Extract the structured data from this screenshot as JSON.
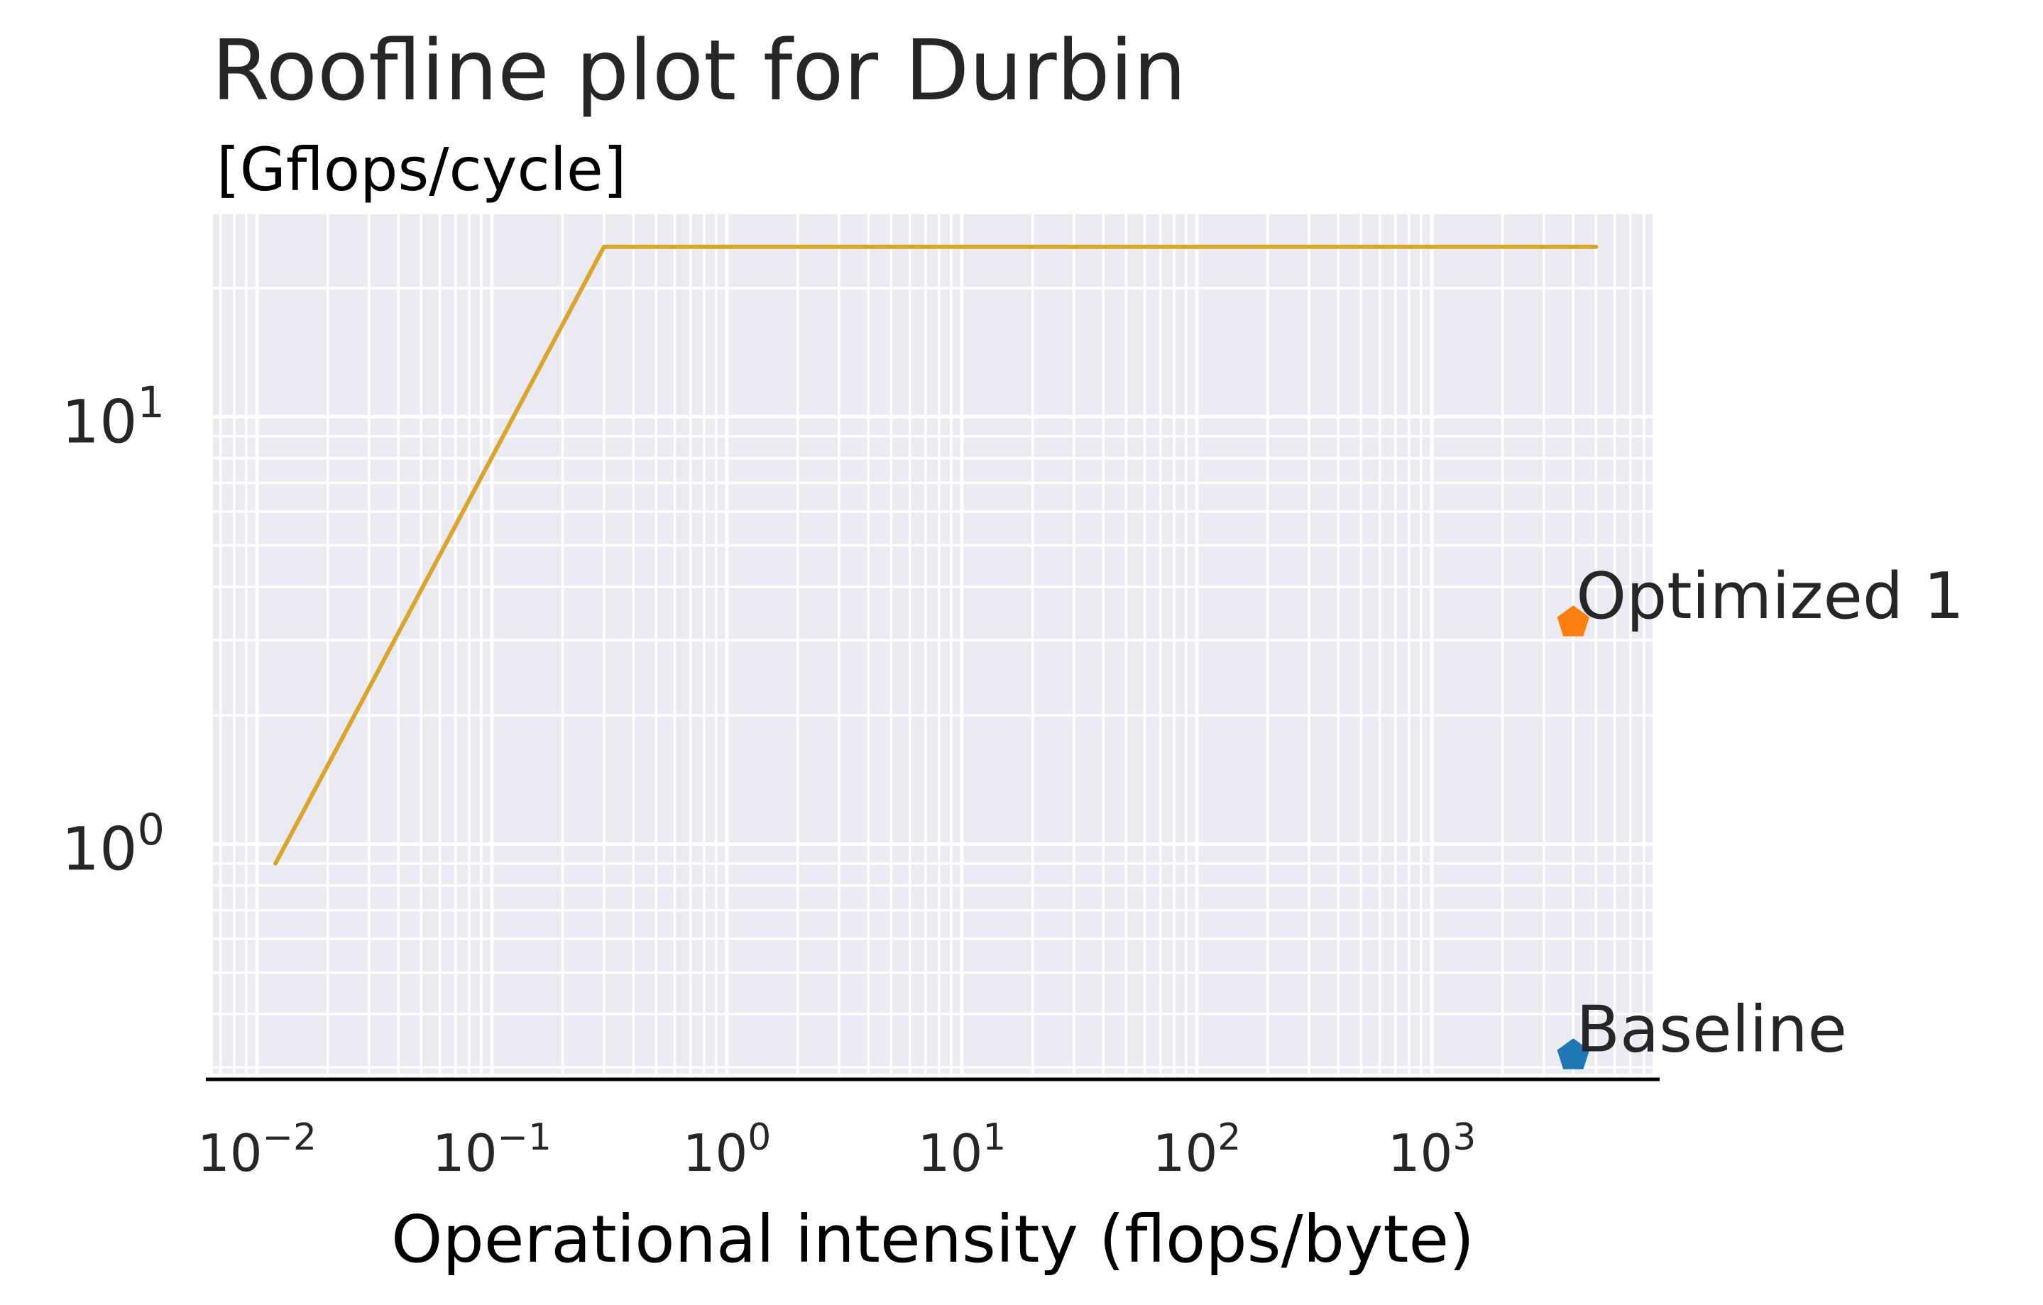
{
  "chart_data": {
    "type": "line",
    "title": "Roofline plot for Durbin",
    "ylabel": "[Gflops/cycle]",
    "xlabel": "Operational intensity (flops/byte)",
    "x_scale": "log",
    "y_scale": "log",
    "xlim": [
      0.0065,
      8700
    ],
    "ylim": [
      0.29,
      30
    ],
    "grid": true,
    "x_ticks": [
      {
        "value": 0.01,
        "base": "10",
        "exp": "−2"
      },
      {
        "value": 0.1,
        "base": "10",
        "exp": "−1"
      },
      {
        "value": 1,
        "base": "10",
        "exp": "0"
      },
      {
        "value": 10,
        "base": "10",
        "exp": "1"
      },
      {
        "value": 100,
        "base": "10",
        "exp": "2"
      },
      {
        "value": 1000,
        "base": "10",
        "exp": "3"
      }
    ],
    "y_ticks": [
      {
        "value": 1,
        "base": "10",
        "exp": "0"
      },
      {
        "value": 10,
        "base": "10",
        "exp": "1"
      }
    ],
    "roofline": {
      "color": "#DAA52A",
      "x": [
        0.012,
        0.3,
        5000
      ],
      "y": [
        0.9,
        25,
        25
      ]
    },
    "points": [
      {
        "label": "Baseline",
        "x": 4000,
        "y": 0.32,
        "color": "#1F77B4"
      },
      {
        "label": "Optimized 1",
        "x": 4000,
        "y": 3.3,
        "color": "#FF7F0E"
      }
    ],
    "colors": {
      "plot_background": "#EAEAF2",
      "grid": "#FFFFFF",
      "axis": "#000000"
    }
  }
}
